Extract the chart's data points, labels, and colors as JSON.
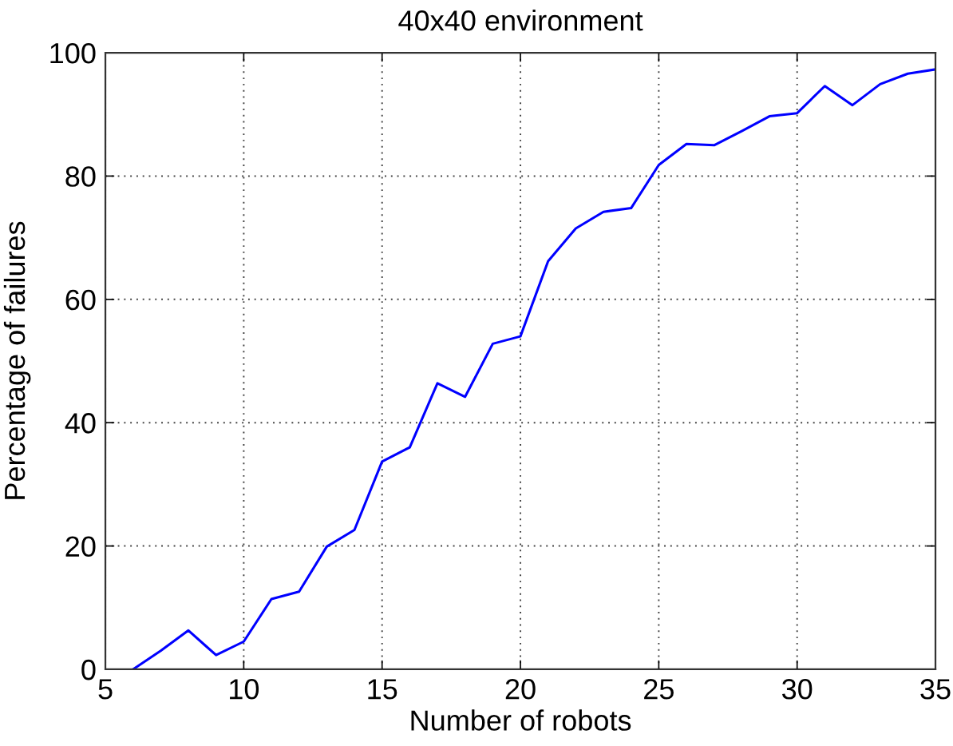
{
  "chart_data": {
    "type": "line",
    "title": "40x40 environment",
    "xlabel": "Number of robots",
    "ylabel": "Percentage of failures",
    "series": [
      {
        "color": "#0000ff",
        "x": [
          6,
          7,
          8,
          9,
          10,
          11,
          12,
          13,
          14,
          15,
          16,
          17,
          18,
          19,
          20,
          21,
          22,
          23,
          24,
          25,
          26,
          27,
          28,
          29,
          30,
          31,
          32,
          33,
          34,
          35
        ],
        "values": [
          0,
          3,
          6.3,
          2.3,
          4.5,
          11.4,
          12.6,
          19.9,
          22.6,
          33.7,
          36,
          46.4,
          44.2,
          52.8,
          54,
          66.2,
          71.5,
          74.2,
          74.8,
          81.8,
          85.2,
          85,
          87.3,
          89.7,
          90.2,
          94.6,
          91.5,
          94.9,
          96.6,
          97.3
        ]
      }
    ],
    "xlim": [
      5,
      35
    ],
    "xticks": [
      5,
      10,
      15,
      20,
      25,
      30,
      35
    ],
    "ylim": [
      0,
      100
    ],
    "yticks": [
      0,
      20,
      40,
      60,
      80,
      100
    ],
    "grid": true,
    "marker": "none",
    "line_style": "solid"
  }
}
